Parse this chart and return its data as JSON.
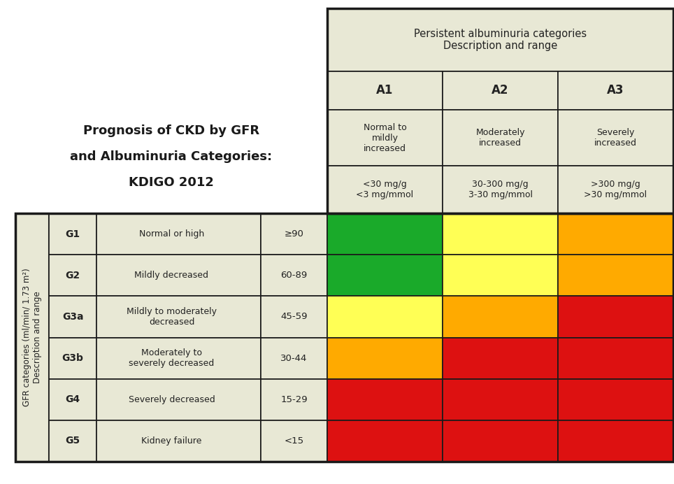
{
  "persistent_header": "Persistent albuminuria categories\nDescription and range",
  "albuminuria_codes": [
    "A1",
    "A2",
    "A3"
  ],
  "albuminuria_desc": [
    "Normal to\nmildly\nincreased",
    "Moderately\nincreased",
    "Severely\nincreased"
  ],
  "albuminuria_range": [
    "<30 mg/g\n<3 mg/mmol",
    "30-300 mg/g\n3-30 mg/mmol",
    ">300 mg/g\n>30 mg/mmol"
  ],
  "gfr_ylabel_line1": "GFR categories (ml/min/ 1.73 m²)",
  "gfr_ylabel_line2": "Description and range",
  "gfr_codes": [
    "G1",
    "G2",
    "G3a",
    "G3b",
    "G4",
    "G5"
  ],
  "gfr_desc": [
    "Normal or high",
    "Mildly decreased",
    "Mildly to moderately\ndecreased",
    "Moderately to\nseverely decreased",
    "Severely decreased",
    "Kidney failure"
  ],
  "gfr_range": [
    "≥90",
    "60-89",
    "45-59",
    "30-44",
    "15-29",
    "<15"
  ],
  "cell_colors": [
    [
      "#1aaa2a",
      "#ffff55",
      "#ffaa00"
    ],
    [
      "#1aaa2a",
      "#ffff55",
      "#ffaa00"
    ],
    [
      "#ffff55",
      "#ffaa00",
      "#dd1111"
    ],
    [
      "#ffaa00",
      "#dd1111",
      "#dd1111"
    ],
    [
      "#dd1111",
      "#dd1111",
      "#dd1111"
    ],
    [
      "#dd1111",
      "#dd1111",
      "#dd1111"
    ]
  ],
  "header_bg": "#e8e8d5",
  "row_bg": "#e8e8d5",
  "title_line1": "Prognosis of CKD by GFR",
  "title_line2": "and Albuminuria Categories:",
  "title_line3": "KDIGO 2012",
  "background_color": "#ffffff",
  "border_dark": "#1a1a1a",
  "border_light": "#555555"
}
